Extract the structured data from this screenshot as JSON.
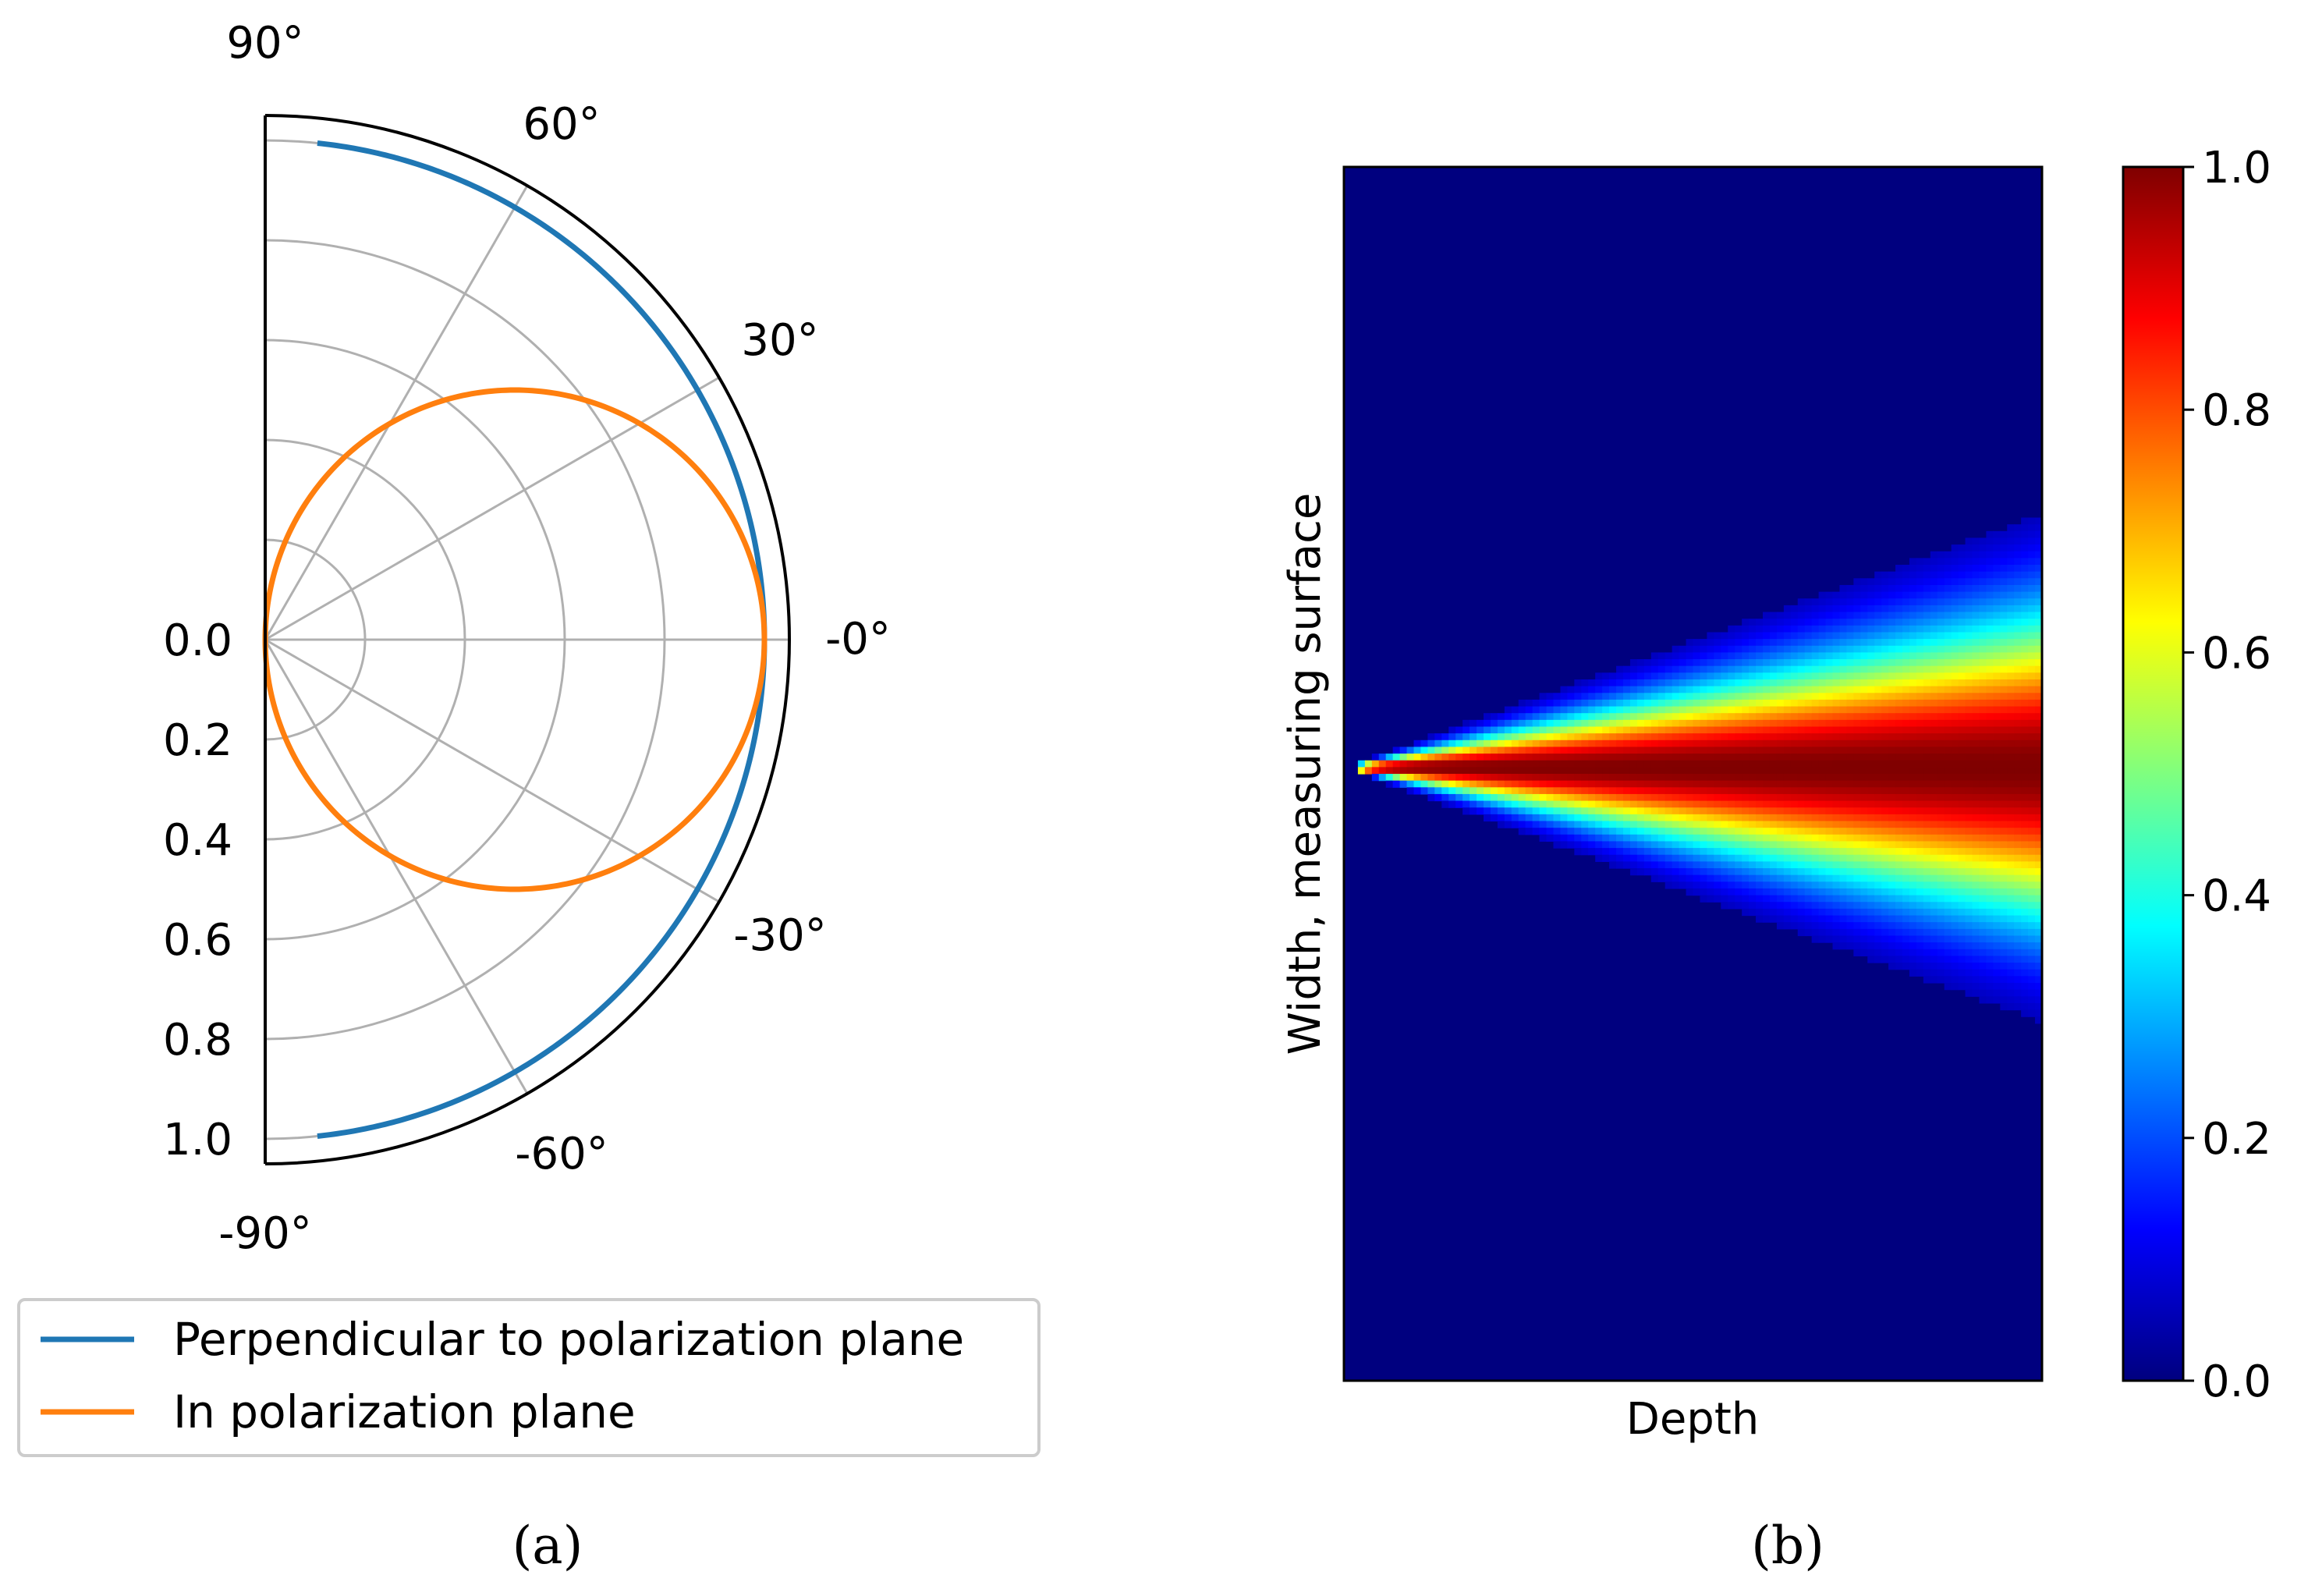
{
  "chart_data": [
    {
      "type": "polar-line",
      "panel_label": "(a)",
      "theta_range_deg": [
        -90,
        90
      ],
      "theta_ticks": [
        {
          "deg": 90,
          "label": "90°"
        },
        {
          "deg": 60,
          "label": "60°"
        },
        {
          "deg": 30,
          "label": "30°"
        },
        {
          "deg": 0,
          "label": "-0°"
        },
        {
          "deg": -30,
          "label": "-30°"
        },
        {
          "deg": -60,
          "label": "-60°"
        },
        {
          "deg": -90,
          "label": "-90°"
        }
      ],
      "r_range": [
        0,
        1.05
      ],
      "r_ticks": [
        0.0,
        0.2,
        0.4,
        0.6,
        0.8,
        1.0
      ],
      "r_tick_labels": [
        "0.0",
        "0.2",
        "0.4",
        "0.6",
        "0.8",
        "1.0"
      ],
      "grid": true,
      "legend_position": "bottom-left, below plot",
      "series": [
        {
          "name": "Perpendicular to polarization plane",
          "color": "#1f77b4",
          "function": "r = 1",
          "theta_deg": [
            -84,
            84
          ]
        },
        {
          "name": "In polarization plane",
          "color": "#ff7f0e",
          "function": "r = cos(theta)",
          "theta_deg": [
            -90,
            90
          ]
        }
      ]
    },
    {
      "type": "heatmap",
      "panel_label": "(b)",
      "xlabel": "Depth",
      "ylabel": "Width, measuring surface",
      "colormap": "jet",
      "colormap_stops": [
        "#00007f",
        "#0000ff",
        "#007fff",
        "#00ffff",
        "#7fff7f",
        "#ffff00",
        "#ff7f00",
        "#ff0000",
        "#7f0000"
      ],
      "colorbar_range": [
        0.0,
        1.0
      ],
      "colorbar_ticks": [
        0.0,
        0.2,
        0.4,
        0.6,
        0.8,
        1.0
      ],
      "colorbar_tick_labels": [
        "0.0",
        "0.2",
        "0.4",
        "0.6",
        "0.8",
        "1.0"
      ],
      "grid": false,
      "description_values": {
        "beam_start_depth_fraction": 0.02,
        "beam_center_width_fraction": 0.495,
        "beam_half_width_at_end_fraction": 0.19,
        "peak_value": 1.0,
        "background_value": 0.0
      }
    }
  ]
}
